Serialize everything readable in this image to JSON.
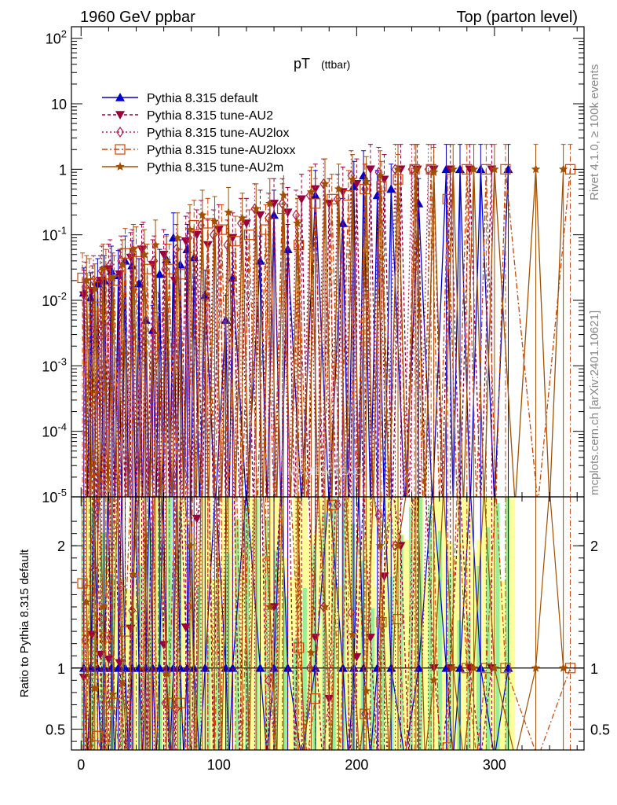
{
  "header": {
    "left_label": "1960 GeV ppbar",
    "right_label": "Top (parton level)",
    "plot_title": "pT",
    "plot_subtitle": "(ttbar)",
    "watermark": "MC-TEA-TEAO",
    "side_text_top": "Rivet 4.1.0, ≥ 100k events",
    "side_text_bottom": "mcplots.cern.ch [arXiv:2401.10621]",
    "ratio_ylabel": "Ratio to Pythia 8.315 default"
  },
  "colors": {
    "default": "#0000cc",
    "au2": "#99003d",
    "au2lox": "#b2184f",
    "au2loxx": "#cc4400",
    "au2m": "#a05000",
    "band_yellow": "#ffff99",
    "band_green": "#99ee99"
  },
  "chart_data": {
    "type": "line",
    "xlabel": "",
    "main": {
      "yscale": "log",
      "ylim": [
        1e-05,
        150
      ],
      "yticks": [
        {
          "value": 100,
          "label": "10^2"
        },
        {
          "value": 10,
          "label": "10"
        },
        {
          "value": 1,
          "label": "1"
        },
        {
          "value": 0.1,
          "label": "10^-1"
        },
        {
          "value": 0.01,
          "label": "10^-2"
        },
        {
          "value": 0.001,
          "label": "10^-3"
        },
        {
          "value": 0.0001,
          "label": "10^-4"
        },
        {
          "value": 1e-05,
          "label": "10^-5"
        }
      ]
    },
    "ratio": {
      "ylim": [
        0.33,
        2.4
      ],
      "yticks": [
        {
          "value": 2,
          "label": "2"
        },
        {
          "value": 1,
          "label": "1"
        },
        {
          "value": 0.5,
          "label": "0.5"
        }
      ],
      "reference": 1
    },
    "xlim": [
      -7,
      365
    ],
    "xticks": [
      0,
      100,
      200,
      300
    ],
    "legend_position": "top-left",
    "series": [
      {
        "name": "Pythia 8.315 default",
        "key": "default",
        "marker": "triangle-up",
        "dash": "",
        "x": [
          2,
          7,
          12,
          17,
          22,
          27,
          32,
          37,
          42,
          47,
          52,
          57,
          62,
          67,
          72,
          77,
          82,
          90,
          105,
          110,
          130,
          140,
          150,
          170,
          190,
          198,
          205,
          215,
          225,
          245,
          265,
          275,
          290,
          310
        ],
        "y": [
          0.013,
          0.011,
          0.018,
          0.02,
          0.028,
          0.024,
          0.04,
          0.034,
          0.018,
          0.005,
          0.0035,
          0.025,
          0.042,
          0.09,
          0.035,
          0.06,
          0.045,
          0.012,
          0.005,
          0.022,
          0.04,
          0.2,
          0.06,
          0.4,
          0.15,
          0.55,
          0.8,
          0.4,
          0.5,
          0.3,
          1,
          1,
          1,
          1
        ]
      },
      {
        "name": "Pythia 8.315 tune-AU2",
        "key": "au2",
        "marker": "triangle-down",
        "dash": "4,3",
        "x": [
          2,
          8,
          14,
          20,
          28,
          36,
          44,
          52,
          60,
          68,
          76,
          84,
          92,
          100,
          110,
          120,
          130,
          140,
          150,
          160,
          170,
          180,
          190,
          200,
          210,
          220,
          232,
          244,
          256,
          268,
          282,
          298
        ],
        "y": [
          0.012,
          0.014,
          0.02,
          0.03,
          0.025,
          0.045,
          0.06,
          0.035,
          0.05,
          0.02,
          0.08,
          0.1,
          0.07,
          0.12,
          0.09,
          0.15,
          0.2,
          0.3,
          0.22,
          0.35,
          0.5,
          0.3,
          0.45,
          0.6,
          1,
          0.7,
          1,
          1,
          1,
          1,
          1,
          1
        ]
      },
      {
        "name": "Pythia 8.315 tune-AU2lox",
        "key": "au2lox",
        "marker": "diamond",
        "dash": "2,3",
        "x": [
          3,
          9,
          15,
          21,
          29,
          37,
          45,
          53,
          61,
          69,
          78,
          87,
          96,
          106,
          116,
          126,
          136,
          146,
          156,
          166,
          176,
          186,
          196,
          206,
          216,
          228,
          240,
          252
        ],
        "y": [
          0.016,
          0.02,
          0.028,
          0.035,
          0.04,
          0.05,
          0.065,
          0.04,
          0.03,
          0.06,
          0.09,
          0.14,
          0.1,
          0.07,
          0.15,
          0.25,
          0.18,
          0.3,
          0.2,
          0.4,
          0.6,
          0.35,
          0.8,
          0.5,
          0.9,
          1,
          1,
          1
        ]
      },
      {
        "name": "Pythia 8.315 tune-AU2loxx",
        "key": "au2loxx",
        "marker": "square-open",
        "dash": "7,3,2,3",
        "x": [
          1,
          6,
          12,
          18,
          24,
          32,
          40,
          48,
          56,
          64,
          72,
          82,
          92,
          102,
          112,
          122,
          134,
          146,
          158,
          170,
          182,
          194,
          206,
          218,
          230,
          242,
          254,
          266,
          280,
          294,
          308,
          355
        ],
        "y": [
          0.022,
          0.018,
          0.008,
          0.025,
          0.02,
          0.052,
          0.055,
          0.03,
          0.0055,
          0.03,
          0.025,
          0.14,
          0.15,
          0.12,
          0.08,
          0.1,
          0.12,
          0.25,
          0.07,
          0.3,
          0.35,
          0.4,
          0.5,
          0.55,
          0.7,
          1,
          1,
          0.35,
          1,
          1,
          1,
          1
        ]
      },
      {
        "name": "Pythia 8.315 tune-AU2m",
        "key": "au2m",
        "marker": "star",
        "dash": "",
        "x": [
          4,
          10,
          16,
          23,
          30,
          38,
          46,
          54,
          62,
          70,
          79,
          88,
          97,
          107,
          117,
          127,
          137,
          147,
          157,
          167,
          177,
          187,
          197,
          207,
          217,
          230,
          243,
          256,
          270,
          285,
          300,
          330,
          350
        ],
        "y": [
          0.02,
          0.015,
          0.03,
          0.022,
          0.035,
          0.06,
          0.05,
          0.07,
          0.04,
          0.09,
          0.12,
          0.2,
          0.16,
          0.22,
          0.18,
          0.25,
          0.3,
          0.4,
          0.15,
          0.45,
          0.6,
          0.5,
          0.7,
          0.65,
          0.8,
          1,
          1,
          0.9,
          1,
          1,
          1,
          1,
          1
        ]
      }
    ]
  }
}
